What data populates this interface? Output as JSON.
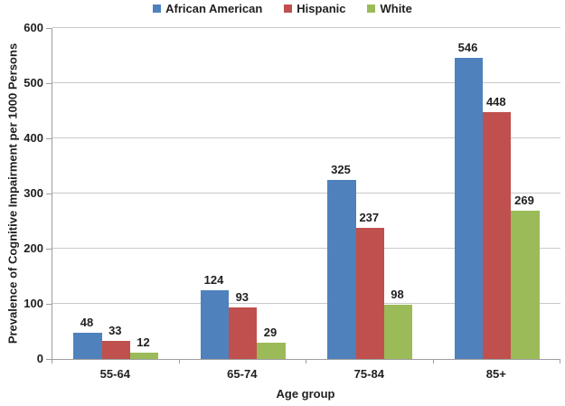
{
  "chart_data": {
    "type": "bar",
    "title": "",
    "xlabel": "Age group",
    "ylabel": "Prevalence of Cognitive Impairment per 1000 Persons",
    "categories": [
      "55-64",
      "65-74",
      "75-84",
      "85+"
    ],
    "series": [
      {
        "name": "African American",
        "color": "#4f81bd",
        "values": [
          48,
          124,
          325,
          546
        ]
      },
      {
        "name": "Hispanic",
        "color": "#c0504d",
        "values": [
          33,
          93,
          237,
          448
        ]
      },
      {
        "name": "White",
        "color": "#9bbb59",
        "values": [
          12,
          29,
          98,
          269
        ]
      }
    ],
    "ylim": [
      0,
      600
    ],
    "yticks": [
      0,
      100,
      200,
      300,
      400,
      500,
      600
    ],
    "grid": true,
    "legend_position": "top",
    "data_labels": true,
    "gridline_color": "#c9c9c9",
    "axis_color": "#9e9e9e",
    "text_color": "#1f1f1f"
  }
}
